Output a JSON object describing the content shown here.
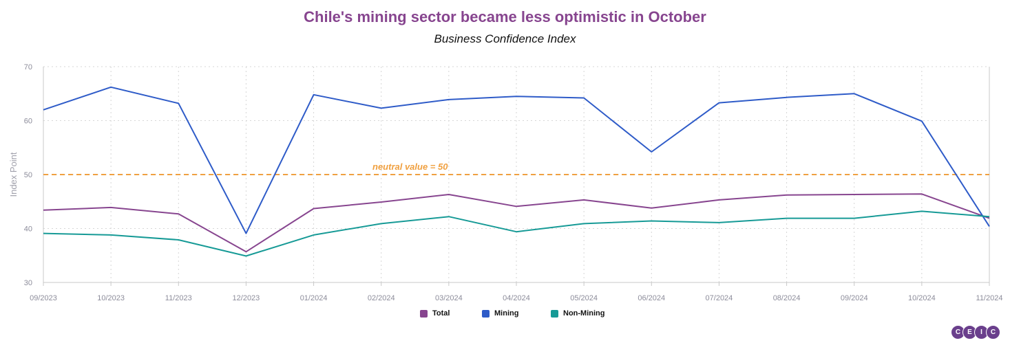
{
  "chart_data": {
    "type": "line",
    "title": "Chile's mining sector became less optimistic in October",
    "subtitle": "Business Confidence Index",
    "ylabel": "Index Point",
    "xlabel": "",
    "ylim": [
      30,
      70
    ],
    "yticks": [
      30,
      40,
      50,
      60,
      70
    ],
    "categories": [
      "09/2023",
      "10/2023",
      "11/2023",
      "12/2023",
      "01/2024",
      "02/2024",
      "03/2024",
      "04/2024",
      "05/2024",
      "06/2024",
      "07/2024",
      "08/2024",
      "09/2024",
      "10/2024",
      "11/2024"
    ],
    "series": [
      {
        "name": "Total",
        "color": "#87458f",
        "values": [
          43.4,
          43.9,
          42.7,
          35.7,
          43.7,
          44.9,
          46.3,
          44.1,
          45.3,
          43.8,
          45.3,
          46.2,
          46.3,
          46.4,
          41.9
        ]
      },
      {
        "name": "Mining",
        "color": "#2e5bc8",
        "values": [
          62.0,
          66.2,
          63.2,
          39.1,
          64.8,
          62.3,
          63.9,
          64.5,
          64.2,
          54.2,
          63.3,
          64.3,
          65.0,
          59.9,
          40.4
        ]
      },
      {
        "name": "Non-Mining",
        "color": "#169a96",
        "values": [
          39.1,
          38.8,
          37.9,
          34.9,
          38.8,
          40.9,
          42.2,
          39.4,
          40.9,
          41.4,
          41.1,
          41.9,
          41.9,
          43.2,
          42.2
        ]
      }
    ],
    "reference_line": {
      "value": 50,
      "label": "neutral value = 50",
      "color": "#f0a040"
    },
    "legend_position": "bottom-center",
    "grid": true
  },
  "logo": [
    "C",
    "E",
    "I",
    "C"
  ]
}
